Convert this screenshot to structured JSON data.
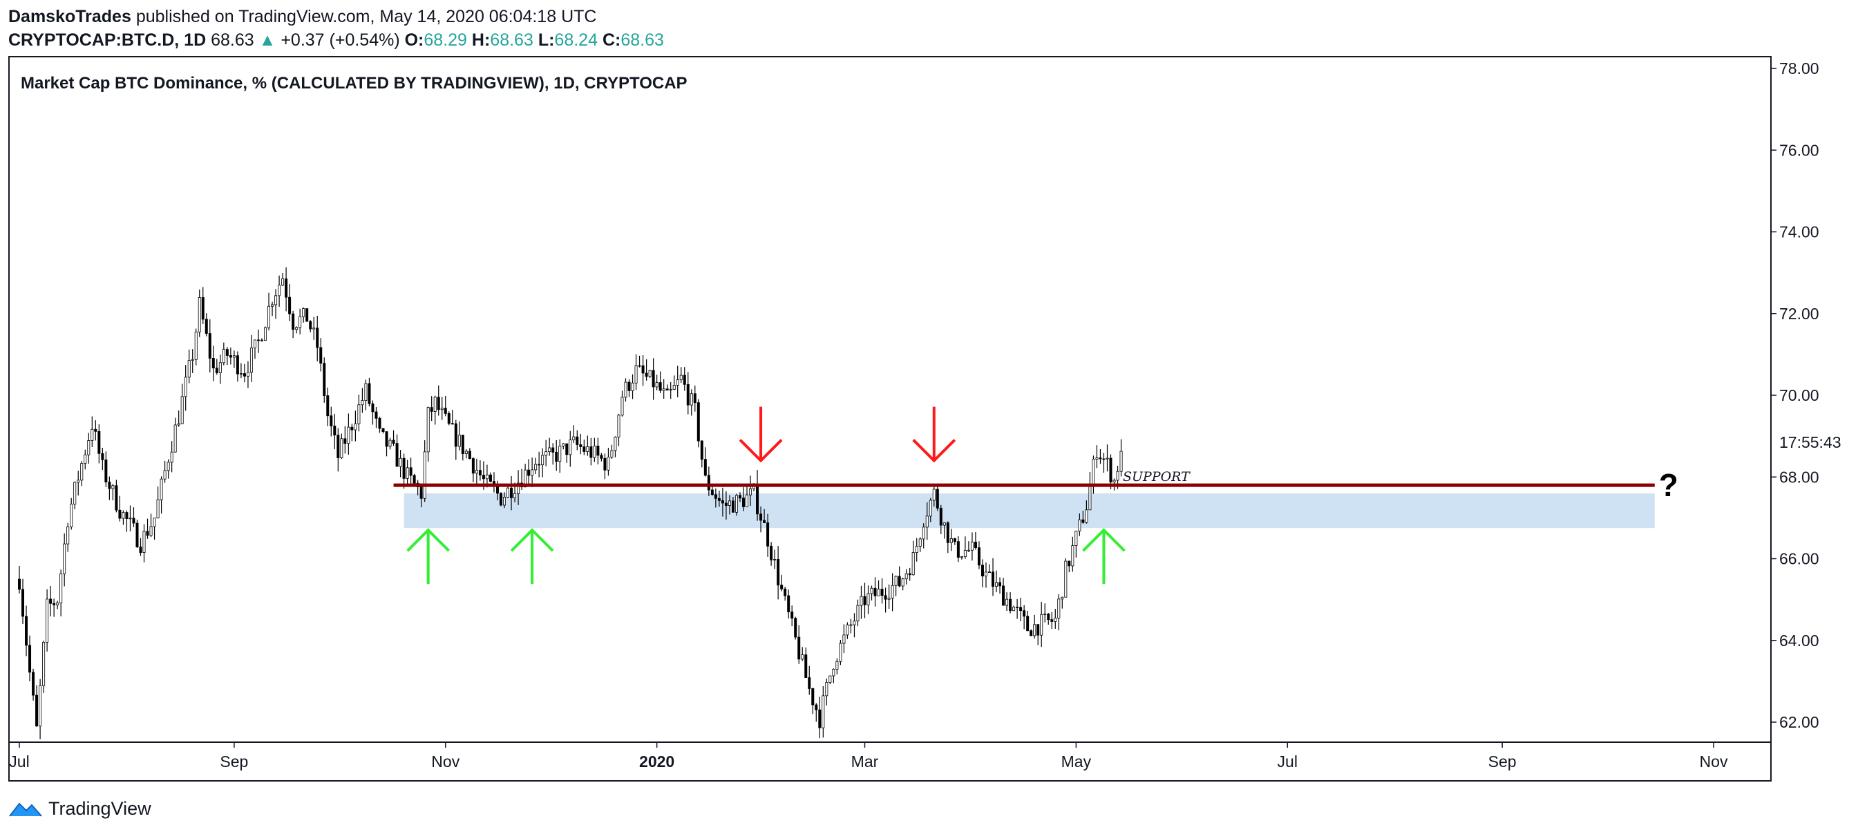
{
  "header": {
    "author": "DamskoTrades",
    "published_text": "published on TradingView.com, May 14, 2020 06:04:18 UTC",
    "symbol": "CRYPTOCAP:BTC.D, 1D",
    "last": "68.63",
    "change": "+0.37 (+0.54%)",
    "open_label": "O:",
    "open": "68.29",
    "high_label": "H:",
    "high": "68.63",
    "low_label": "L:",
    "low": "68.24",
    "close_label": "C:",
    "close": "68.63"
  },
  "footer": {
    "brand": "TradingView",
    "logo_icon": "tradingview-logo-icon"
  },
  "colors": {
    "up": "#26a69a",
    "candle": "#000000",
    "support": "#8b0000",
    "zone": "#cfe2f3",
    "red_arrow": "#ff1a1a",
    "green_arrow": "#33ee33"
  },
  "chart_data": {
    "type": "candlestick",
    "title": "Market Cap BTC Dominance, % (CALCULATED BY TRADINGVIEW), 1D, CRYPTOCAP",
    "y_axis": {
      "ticks": [
        62,
        64,
        66,
        68,
        70,
        72,
        74,
        76,
        78
      ],
      "tick_labels": [
        "62.00",
        "64.00",
        "66.00",
        "68.00",
        "70.00",
        "72.00",
        "74.00",
        "76.00",
        "78.00"
      ],
      "range": [
        61.5,
        79.4
      ],
      "position": "right"
    },
    "x_axis": {
      "tick_labels": [
        "Jul",
        "Sep",
        "Nov",
        "2020",
        "Mar",
        "May",
        "Jul",
        "Sep",
        "Nov"
      ],
      "tick_dates": [
        "2019-07-01",
        "2019-09-01",
        "2019-11-01",
        "2020-01-01",
        "2020-03-01",
        "2020-05-01",
        "2020-07-01",
        "2020-09-01",
        "2020-11-01"
      ]
    },
    "countdown_label": "17:55:43",
    "countdown_value": 68.85,
    "price_path": [
      [
        "2019-07-01",
        65.5
      ],
      [
        "2019-07-04",
        63.2
      ],
      [
        "2019-07-06",
        61.8
      ],
      [
        "2019-07-09",
        64.8
      ],
      [
        "2019-07-12",
        65.0
      ],
      [
        "2019-07-15",
        67.0
      ],
      [
        "2019-07-18",
        68.0
      ],
      [
        "2019-07-22",
        69.3
      ],
      [
        "2019-07-25",
        68.2
      ],
      [
        "2019-07-30",
        67.2
      ],
      [
        "2019-08-05",
        66.4
      ],
      [
        "2019-08-09",
        67.0
      ],
      [
        "2019-08-13",
        68.5
      ],
      [
        "2019-08-16",
        69.5
      ],
      [
        "2019-08-20",
        71.0
      ],
      [
        "2019-08-22",
        72.2
      ],
      [
        "2019-08-26",
        70.6
      ],
      [
        "2019-08-30",
        71.0
      ],
      [
        "2019-09-04",
        70.6
      ],
      [
        "2019-09-08",
        71.3
      ],
      [
        "2019-09-12",
        72.4
      ],
      [
        "2019-09-15",
        72.9
      ],
      [
        "2019-09-18",
        71.8
      ],
      [
        "2019-09-22",
        71.9
      ],
      [
        "2019-09-25",
        71.2
      ],
      [
        "2019-09-28",
        69.5
      ],
      [
        "2019-10-01",
        68.5
      ],
      [
        "2019-10-05",
        69.3
      ],
      [
        "2019-10-09",
        70.1
      ],
      [
        "2019-10-13",
        69.0
      ],
      [
        "2019-10-17",
        68.6
      ],
      [
        "2019-10-21",
        68.0
      ],
      [
        "2019-10-25",
        67.6
      ],
      [
        "2019-10-27",
        69.5
      ],
      [
        "2019-10-29",
        69.8
      ],
      [
        "2019-11-02",
        69.2
      ],
      [
        "2019-11-07",
        68.6
      ],
      [
        "2019-11-12",
        67.9
      ],
      [
        "2019-11-17",
        67.5
      ],
      [
        "2019-11-22",
        67.9
      ],
      [
        "2019-11-27",
        68.4
      ],
      [
        "2019-12-02",
        68.5
      ],
      [
        "2019-12-08",
        68.8
      ],
      [
        "2019-12-13",
        68.6
      ],
      [
        "2019-12-18",
        68.3
      ],
      [
        "2019-12-22",
        70.0
      ],
      [
        "2019-12-26",
        70.6
      ],
      [
        "2019-12-31",
        70.3
      ],
      [
        "2020-01-04",
        69.9
      ],
      [
        "2020-01-08",
        70.4
      ],
      [
        "2020-01-12",
        69.6
      ],
      [
        "2020-01-15",
        67.9
      ],
      [
        "2020-01-20",
        67.3
      ],
      [
        "2020-01-25",
        67.4
      ],
      [
        "2020-01-29",
        67.6
      ],
      [
        "2020-02-02",
        66.5
      ],
      [
        "2020-02-06",
        65.2
      ],
      [
        "2020-02-10",
        64.0
      ],
      [
        "2020-02-14",
        62.8
      ],
      [
        "2020-02-17",
        62.1
      ],
      [
        "2020-02-21",
        63.5
      ],
      [
        "2020-02-25",
        64.2
      ],
      [
        "2020-03-01",
        65.0
      ],
      [
        "2020-03-06",
        65.2
      ],
      [
        "2020-03-11",
        65.4
      ],
      [
        "2020-03-15",
        66.0
      ],
      [
        "2020-03-18",
        67.0
      ],
      [
        "2020-03-21",
        67.6
      ],
      [
        "2020-03-24",
        66.8
      ],
      [
        "2020-03-27",
        66.2
      ],
      [
        "2020-04-01",
        66.2
      ],
      [
        "2020-04-05",
        65.6
      ],
      [
        "2020-04-09",
        65.2
      ],
      [
        "2020-04-13",
        64.8
      ],
      [
        "2020-04-17",
        64.3
      ],
      [
        "2020-04-21",
        64.4
      ],
      [
        "2020-04-25",
        64.5
      ],
      [
        "2020-04-28",
        65.7
      ],
      [
        "2020-05-01",
        66.5
      ],
      [
        "2020-05-04",
        67.3
      ],
      [
        "2020-05-07",
        68.7
      ],
      [
        "2020-05-10",
        68.3
      ],
      [
        "2020-05-12",
        67.9
      ],
      [
        "2020-05-14",
        68.63
      ]
    ],
    "support_line": {
      "label": "SUPPORT",
      "value": 67.8,
      "start": "2019-10-17",
      "end": "2020-10-15"
    },
    "support_zone": {
      "top": 67.6,
      "bottom": 66.75,
      "start": "2019-10-20",
      "end": "2020-10-15"
    },
    "annotations": [
      {
        "type": "red_arrow_down",
        "date": "2020-01-31",
        "tip": 68.4
      },
      {
        "type": "red_arrow_down",
        "date": "2020-03-21",
        "tip": 68.4
      },
      {
        "type": "green_arrow_up",
        "date": "2019-10-27",
        "tip": 66.7
      },
      {
        "type": "green_arrow_up",
        "date": "2019-11-26",
        "tip": 66.7
      },
      {
        "type": "green_arrow_up",
        "date": "2020-05-09",
        "tip": 66.7
      },
      {
        "type": "text",
        "text": "?",
        "date": "2020-10-19",
        "value": 67.8
      }
    ]
  }
}
